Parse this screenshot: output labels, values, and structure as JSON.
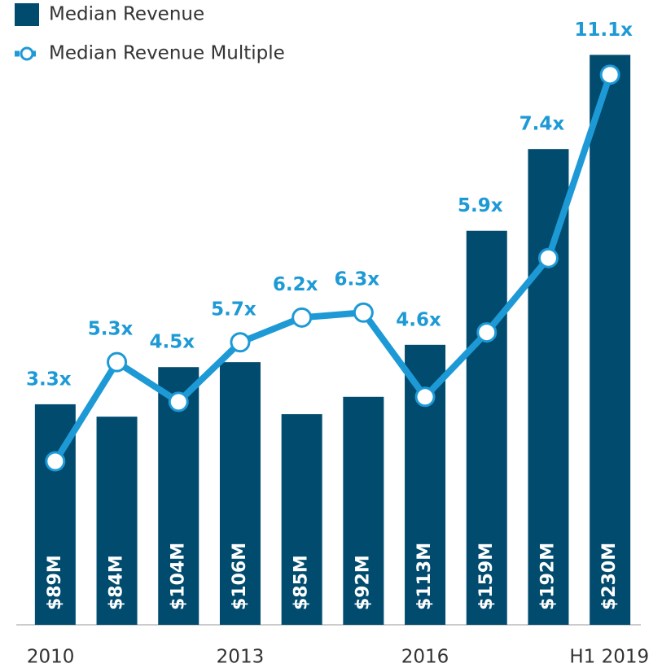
{
  "chart_data": {
    "type": "bar",
    "categories": [
      "2010",
      null,
      null,
      "2013",
      null,
      null,
      "2016",
      null,
      null,
      "H1 2019"
    ],
    "series": [
      {
        "name": "Median Revenue",
        "type": "bar",
        "color": "#004b6e",
        "values": [
          89,
          84,
          104,
          106,
          85,
          92,
          113,
          159,
          192,
          230
        ],
        "value_labels": [
          "$89M",
          "$84M",
          "$104M",
          "$106M",
          "$85M",
          "$92M",
          "$113M",
          "$159M",
          "$192M",
          "$230M"
        ]
      },
      {
        "name": "Median Revenue Multiple",
        "type": "line",
        "axis": "y2",
        "color": "#1d9ad6",
        "values": [
          3.3,
          5.3,
          4.5,
          5.7,
          6.2,
          6.3,
          4.6,
          5.9,
          7.4,
          11.1
        ],
        "value_labels": [
          "3.3x",
          "5.3x",
          "4.5x",
          "5.7x",
          "6.2x",
          "6.3x",
          "4.6x",
          "5.9x",
          "7.4x",
          "11.1x"
        ]
      }
    ],
    "ylim": [
      0,
      240
    ],
    "y2lim": [
      0,
      12
    ],
    "grid": false,
    "legend": "top-left"
  }
}
